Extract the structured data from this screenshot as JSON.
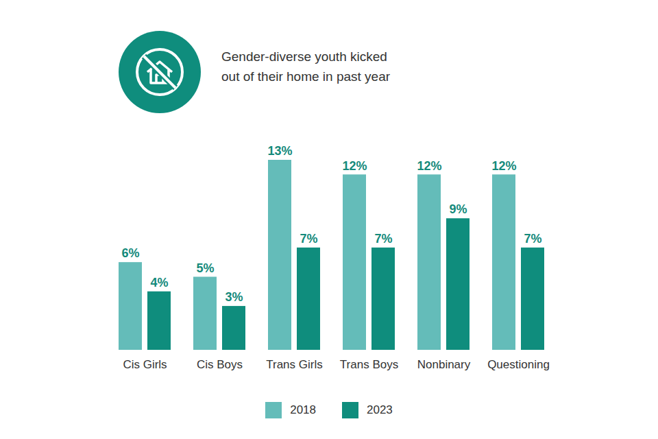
{
  "chart_data": {
    "type": "bar",
    "title": "Gender-diverse youth kicked\nout of their home in past year",
    "categories": [
      "Cis Girls",
      "Cis Boys",
      "Trans Girls",
      "Trans Boys",
      "Nonbinary",
      "Questioning"
    ],
    "series": [
      {
        "name": "2018",
        "color": "#64bcb9",
        "values": [
          6,
          5,
          13,
          12,
          12,
          12
        ],
        "value_labels": [
          "6%",
          "5%",
          "13%",
          "12%",
          "12%",
          "12%"
        ]
      },
      {
        "name": "2023",
        "color": "#0f8d7d",
        "values": [
          4,
          3,
          7,
          7,
          9,
          7
        ],
        "value_labels": [
          "4%",
          "3%",
          "7%",
          "7%",
          "9%",
          "7%"
        ]
      }
    ],
    "ylim": [
      0,
      13
    ],
    "grid": false,
    "legend": "bottom",
    "data_labels": true,
    "tick_labels": "x"
  }
}
